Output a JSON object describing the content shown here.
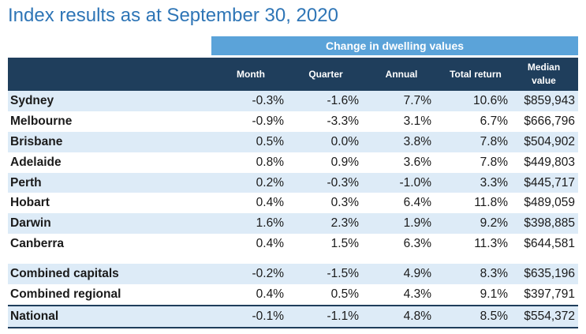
{
  "title": "Index results as at September 30, 2020",
  "band_label": "Change in dwelling values",
  "columns": {
    "month": "Month",
    "quarter": "Quarter",
    "annual": "Annual",
    "total_return": "Total return",
    "median_line1": "Median",
    "median_line2": "value"
  },
  "rows": [
    {
      "name": "Sydney",
      "month": "-0.3%",
      "quarter": "-1.6%",
      "annual": "7.7%",
      "total_return": "10.6%",
      "median": "$859,943"
    },
    {
      "name": "Melbourne",
      "month": "-0.9%",
      "quarter": "-3.3%",
      "annual": "3.1%",
      "total_return": "6.7%",
      "median": "$666,796"
    },
    {
      "name": "Brisbane",
      "month": "0.5%",
      "quarter": "0.0%",
      "annual": "3.8%",
      "total_return": "7.8%",
      "median": "$504,902"
    },
    {
      "name": "Adelaide",
      "month": "0.8%",
      "quarter": "0.9%",
      "annual": "3.6%",
      "total_return": "7.8%",
      "median": "$449,803"
    },
    {
      "name": "Perth",
      "month": "0.2%",
      "quarter": "-0.3%",
      "annual": "-1.0%",
      "total_return": "3.3%",
      "median": "$445,717"
    },
    {
      "name": "Hobart",
      "month": "0.4%",
      "quarter": "0.3%",
      "annual": "6.4%",
      "total_return": "11.8%",
      "median": "$489,059"
    },
    {
      "name": "Darwin",
      "month": "1.6%",
      "quarter": "2.3%",
      "annual": "1.9%",
      "total_return": "9.2%",
      "median": "$398,885"
    },
    {
      "name": "Canberra",
      "month": "0.4%",
      "quarter": "1.5%",
      "annual": "6.3%",
      "total_return": "11.3%",
      "median": "$644,581"
    }
  ],
  "summary_rows": [
    {
      "name": "Combined capitals",
      "month": "-0.2%",
      "quarter": "-1.5%",
      "annual": "4.9%",
      "total_return": "8.3%",
      "median": "$635,196"
    },
    {
      "name": "Combined regional",
      "month": "0.4%",
      "quarter": "0.5%",
      "annual": "4.3%",
      "total_return": "9.1%",
      "median": "$397,791"
    },
    {
      "name": "National",
      "month": "-0.1%",
      "quarter": "-1.1%",
      "annual": "4.8%",
      "total_return": "8.5%",
      "median": "$554,372"
    }
  ],
  "colors": {
    "title": "#2e75b6",
    "band": "#5ba3d9",
    "header": "#1f3e5c",
    "row_shade": "#ddebf7"
  }
}
